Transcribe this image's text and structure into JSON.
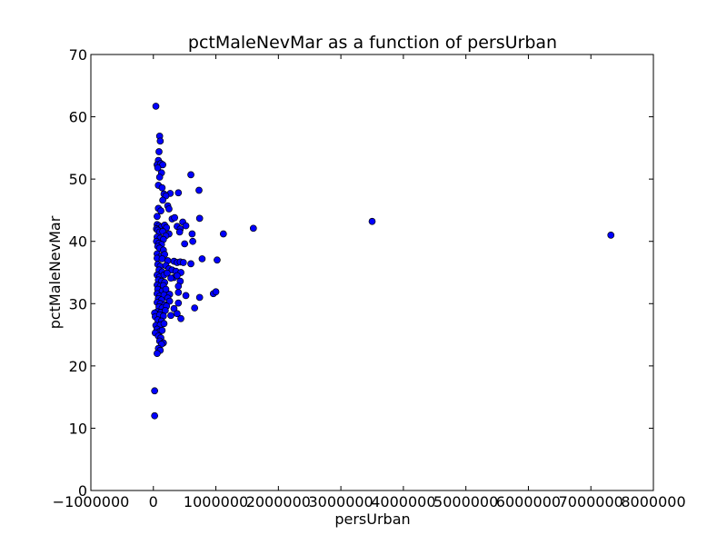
{
  "chart_data": {
    "type": "scatter",
    "title": "pctMaleNevMar as a function of persUrban",
    "xlabel": "persUrban",
    "ylabel": "pctMaleNevMar",
    "xlim": [
      -1000000,
      8000000
    ],
    "ylim": [
      0,
      70
    ],
    "xticks": [
      -1000000,
      0,
      1000000,
      2000000,
      3000000,
      4000000,
      5000000,
      6000000,
      7000000,
      8000000
    ],
    "xtick_labels": [
      "−1000000",
      "0",
      "1000000",
      "2000000",
      "3000000",
      "4000000",
      "5000000",
      "6000000",
      "7000000",
      "8000000"
    ],
    "yticks": [
      0,
      10,
      20,
      30,
      40,
      50,
      60,
      70
    ],
    "ytick_labels": [
      "0",
      "10",
      "20",
      "30",
      "40",
      "50",
      "60",
      "70"
    ],
    "grid": false,
    "marker_color": "#0000ff",
    "marker_edge": "#000000",
    "points": [
      [
        40000,
        61.7
      ],
      [
        100000,
        56.9
      ],
      [
        110000,
        56.1
      ],
      [
        90000,
        54.4
      ],
      [
        80000,
        53.0
      ],
      [
        60000,
        52.3
      ],
      [
        120000,
        52.5
      ],
      [
        150000,
        52.3
      ],
      [
        70000,
        51.8
      ],
      [
        130000,
        51.0
      ],
      [
        100000,
        50.3
      ],
      [
        600000,
        50.7
      ],
      [
        80000,
        49.0
      ],
      [
        140000,
        48.6
      ],
      [
        730000,
        48.2
      ],
      [
        170000,
        47.6
      ],
      [
        270000,
        47.7
      ],
      [
        400000,
        47.8
      ],
      [
        200000,
        47.3
      ],
      [
        150000,
        46.6
      ],
      [
        230000,
        45.7
      ],
      [
        80000,
        45.3
      ],
      [
        250000,
        45.2
      ],
      [
        120000,
        44.9
      ],
      [
        60000,
        44.0
      ],
      [
        300000,
        43.6
      ],
      [
        340000,
        43.8
      ],
      [
        470000,
        43.1
      ],
      [
        740000,
        43.7
      ],
      [
        3500000,
        43.2
      ],
      [
        60000,
        42.7
      ],
      [
        90000,
        42.5
      ],
      [
        130000,
        42.3
      ],
      [
        180000,
        42.6
      ],
      [
        210000,
        42.2
      ],
      [
        380000,
        42.4
      ],
      [
        430000,
        42.0
      ],
      [
        520000,
        42.5
      ],
      [
        1600000,
        42.1
      ],
      [
        50000,
        42.0
      ],
      [
        70000,
        41.8
      ],
      [
        100000,
        41.5
      ],
      [
        150000,
        41.6
      ],
      [
        250000,
        41.2
      ],
      [
        420000,
        41.5
      ],
      [
        620000,
        41.2
      ],
      [
        1120000,
        41.2
      ],
      [
        7320000,
        41.0
      ],
      [
        60000,
        40.7
      ],
      [
        110000,
        40.5
      ],
      [
        200000,
        40.9
      ],
      [
        160000,
        40.3
      ],
      [
        50000,
        40.0
      ],
      [
        90000,
        39.7
      ],
      [
        130000,
        39.5
      ],
      [
        500000,
        39.6
      ],
      [
        630000,
        40.0
      ],
      [
        70000,
        39.2
      ],
      [
        100000,
        38.9
      ],
      [
        160000,
        38.6
      ],
      [
        60000,
        38.0
      ],
      [
        120000,
        37.6
      ],
      [
        180000,
        37.9
      ],
      [
        60000,
        37.3
      ],
      [
        140000,
        37.2
      ],
      [
        230000,
        36.9
      ],
      [
        330000,
        36.8
      ],
      [
        380000,
        36.6
      ],
      [
        430000,
        36.7
      ],
      [
        480000,
        36.6
      ],
      [
        600000,
        36.4
      ],
      [
        780000,
        37.2
      ],
      [
        1020000,
        37.0
      ],
      [
        70000,
        36.3
      ],
      [
        110000,
        36.0
      ],
      [
        200000,
        36.1
      ],
      [
        90000,
        35.4
      ],
      [
        140000,
        35.1
      ],
      [
        250000,
        35.6
      ],
      [
        300000,
        35.4
      ],
      [
        360000,
        35.2
      ],
      [
        440000,
        35.0
      ],
      [
        60000,
        34.6
      ],
      [
        100000,
        34.3
      ],
      [
        170000,
        34.6
      ],
      [
        220000,
        34.9
      ],
      [
        330000,
        34.2
      ],
      [
        280000,
        34.1
      ],
      [
        380000,
        34.5
      ],
      [
        80000,
        33.8
      ],
      [
        130000,
        33.6
      ],
      [
        180000,
        33.4
      ],
      [
        430000,
        33.6
      ],
      [
        60000,
        33.0
      ],
      [
        110000,
        32.8
      ],
      [
        160000,
        32.9
      ],
      [
        400000,
        32.8
      ],
      [
        70000,
        32.3
      ],
      [
        140000,
        32.0
      ],
      [
        200000,
        32.3
      ],
      [
        60000,
        31.6
      ],
      [
        100000,
        31.2
      ],
      [
        170000,
        31.4
      ],
      [
        260000,
        31.5
      ],
      [
        400000,
        31.8
      ],
      [
        520000,
        31.3
      ],
      [
        960000,
        31.6
      ],
      [
        1000000,
        31.9
      ],
      [
        80000,
        30.8
      ],
      [
        130000,
        30.6
      ],
      [
        230000,
        30.9
      ],
      [
        740000,
        31.0
      ],
      [
        60000,
        30.2
      ],
      [
        110000,
        30.0
      ],
      [
        180000,
        29.8
      ],
      [
        260000,
        30.4
      ],
      [
        400000,
        30.1
      ],
      [
        90000,
        29.5
      ],
      [
        140000,
        29.3
      ],
      [
        210000,
        29.6
      ],
      [
        330000,
        29.2
      ],
      [
        660000,
        29.3
      ],
      [
        60000,
        28.7
      ],
      [
        120000,
        28.6
      ],
      [
        190000,
        28.9
      ],
      [
        20000,
        28.5
      ],
      [
        30000,
        27.9
      ],
      [
        100000,
        28.2
      ],
      [
        160000,
        28.0
      ],
      [
        280000,
        28.1
      ],
      [
        380000,
        28.4
      ],
      [
        440000,
        27.6
      ],
      [
        70000,
        27.4
      ],
      [
        130000,
        27.2
      ],
      [
        40000,
        26.5
      ],
      [
        110000,
        26.6
      ],
      [
        170000,
        26.8
      ],
      [
        60000,
        25.9
      ],
      [
        100000,
        25.5
      ],
      [
        140000,
        25.7
      ],
      [
        30000,
        25.3
      ],
      [
        80000,
        24.8
      ],
      [
        120000,
        24.5
      ],
      [
        100000,
        24.0
      ],
      [
        160000,
        23.7
      ],
      [
        130000,
        23.5
      ],
      [
        80000,
        22.8
      ],
      [
        110000,
        22.5
      ],
      [
        60000,
        22.0
      ],
      [
        20000,
        16.0
      ],
      [
        20000,
        12.0
      ]
    ]
  }
}
